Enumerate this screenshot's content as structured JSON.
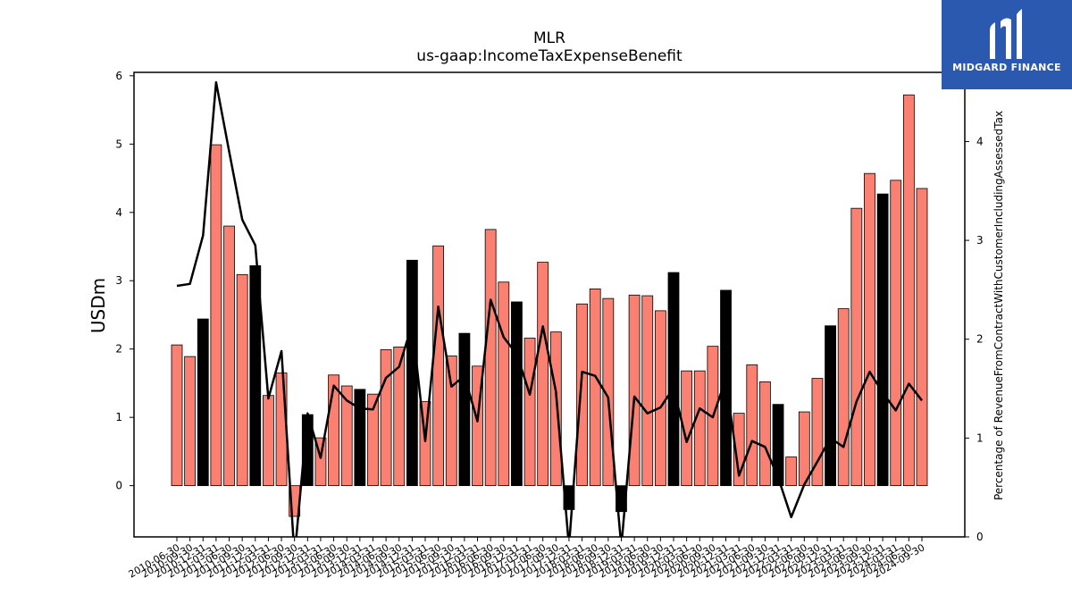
{
  "brand": {
    "name": "MIDGARD FINANCE",
    "color": "#2b59b0"
  },
  "chart_data": {
    "type": "bar",
    "title": "MLR",
    "subtitle": "us-gaap:IncomeTaxExpenseBenefit",
    "ylabel": "USDm",
    "y2label": "Percentage of RevenueFromContractWithCustomerIncludingAssessedTax",
    "ylim": [
      -0.75,
      6.05
    ],
    "y2lim": [
      0,
      4.7
    ],
    "yticks": [
      0,
      1,
      2,
      3,
      4,
      5,
      6
    ],
    "y2ticks": [
      0,
      1,
      2,
      3,
      4
    ],
    "colors": {
      "quarter": "#fa8072",
      "annual": "#000000",
      "line": "#000000"
    },
    "categories": [
      "2010-06-30",
      "2010-09-30",
      "2010-12-31",
      "2011-03-31",
      "2011-06-30",
      "2011-09-30",
      "2011-12-31",
      "2012-03-31",
      "2012-06-30",
      "2012-09-30",
      "2012-12-31",
      "2013-03-31",
      "2013-06-30",
      "2013-09-30",
      "2013-12-31",
      "2014-03-31",
      "2014-06-30",
      "2014-09-30",
      "2014-12-31",
      "2015-03-31",
      "2015-06-30",
      "2015-09-30",
      "2015-12-31",
      "2016-03-31",
      "2016-06-30",
      "2016-09-30",
      "2016-12-31",
      "2017-03-31",
      "2017-06-30",
      "2017-09-30",
      "2017-12-31",
      "2018-03-31",
      "2018-06-30",
      "2018-09-30",
      "2018-12-31",
      "2019-03-31",
      "2019-06-30",
      "2019-09-30",
      "2019-12-31",
      "2020-03-31",
      "2020-06-30",
      "2020-09-30",
      "2020-12-31",
      "2021-03-31",
      "2021-06-30",
      "2021-09-30",
      "2021-12-31",
      "2022-03-31",
      "2022-06-30",
      "2022-09-30",
      "2022-12-31",
      "2023-03-31",
      "2023-06-30",
      "2023-09-30",
      "2023-12-31",
      "2024-03-31",
      "2024-06-30",
      "2024-09-30"
    ],
    "series": [
      {
        "name": "",
        "values": [
          2.06,
          1.89,
          2.44,
          4.99,
          3.8,
          3.09,
          3.22,
          1.32,
          1.65,
          -0.45,
          1.04,
          0.7,
          1.62,
          1.46,
          1.41,
          1.34,
          1.99,
          2.03,
          3.3,
          1.23,
          3.51,
          1.9,
          2.23,
          1.75,
          3.75,
          2.98,
          2.69,
          2.16,
          3.27,
          2.25,
          -0.35,
          2.66,
          2.88,
          2.74,
          -0.38,
          2.79,
          2.78,
          2.56,
          3.12,
          1.68,
          1.68,
          2.04,
          2.86,
          1.06,
          1.77,
          1.52,
          1.19,
          0.42,
          1.08,
          1.57,
          2.34,
          2.59,
          4.06,
          4.57,
          4.27,
          4.47,
          5.72,
          4.35
        ],
        "annual": [
          false,
          false,
          true,
          false,
          false,
          false,
          true,
          false,
          false,
          false,
          true,
          false,
          false,
          false,
          true,
          false,
          false,
          false,
          true,
          false,
          false,
          false,
          true,
          false,
          false,
          false,
          true,
          false,
          false,
          false,
          true,
          false,
          false,
          false,
          true,
          false,
          false,
          false,
          true,
          false,
          false,
          false,
          true,
          false,
          false,
          false,
          true,
          false,
          false,
          false,
          true,
          false,
          false,
          false,
          true,
          false,
          false,
          false
        ]
      },
      {
        "name": "",
        "axis": "right",
        "values": [
          2.54,
          2.56,
          3.05,
          4.6,
          3.9,
          3.21,
          2.95,
          1.4,
          1.88,
          -0.2,
          1.25,
          0.8,
          1.53,
          1.38,
          1.3,
          1.29,
          1.61,
          1.72,
          2.15,
          0.97,
          2.33,
          1.52,
          1.63,
          1.17,
          2.4,
          2.02,
          1.85,
          1.44,
          2.13,
          1.47,
          -0.1,
          1.67,
          1.63,
          1.41,
          -0.1,
          1.42,
          1.25,
          1.31,
          1.51,
          0.96,
          1.3,
          1.21,
          1.6,
          0.62,
          0.97,
          0.91,
          0.6,
          0.2,
          0.53,
          0.76,
          1.0,
          0.91,
          1.37,
          1.67,
          1.46,
          1.28,
          1.55,
          1.38
        ]
      }
    ]
  }
}
